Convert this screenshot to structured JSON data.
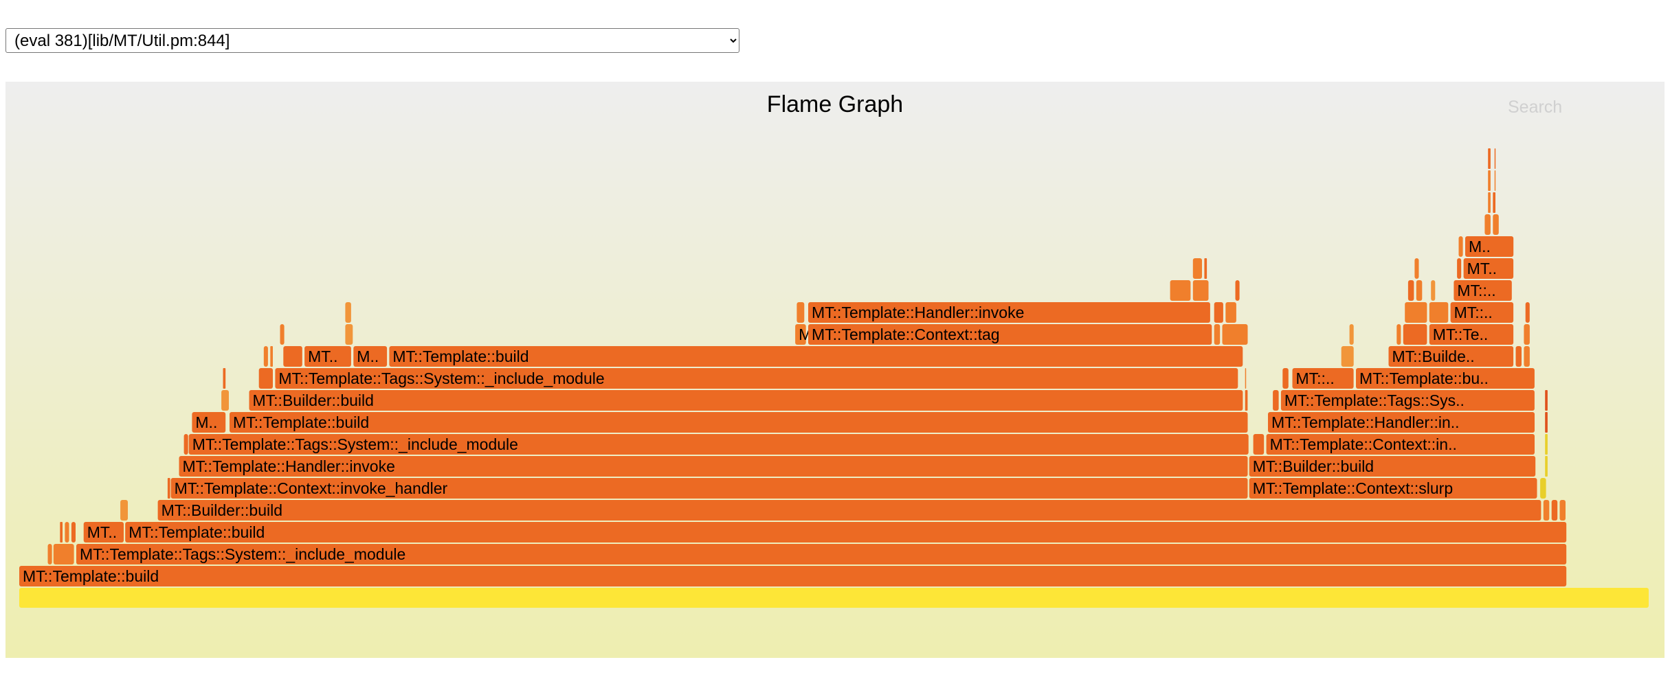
{
  "profile_select": {
    "selected": "(eval 381)[lib/MT/Util.pm:844]",
    "options": [
      "(eval 381)[lib/MT/Util.pm:844]"
    ]
  },
  "graph": {
    "title": "Flame Graph",
    "search_label": "Search",
    "total": 1000,
    "colors": {
      "frame": "#ec6a23",
      "frame_alt": "#f07f2c",
      "frame_light": "#f1953a",
      "root": "#fde637",
      "yellow": "#e8cf2a",
      "red": "#e0521c"
    }
  },
  "frames": [
    {
      "name": "",
      "depth": 0,
      "start": 0,
      "width": 1000,
      "color": "root"
    },
    {
      "name": "MT::Template::build",
      "label": "MT::Template::build",
      "depth": 1,
      "start": 0,
      "width": 949.5,
      "color": "frame"
    },
    {
      "name": "",
      "depth": 2,
      "start": 17.5,
      "width": 3,
      "color": "frame_alt"
    },
    {
      "name": "",
      "depth": 2,
      "start": 21,
      "width": 13,
      "color": "frame_alt"
    },
    {
      "name": "MT::Template::Tags::System::_include_module",
      "label": "MT::Template::Tags::System::_include_module",
      "depth": 2,
      "start": 35,
      "width": 914.5,
      "color": "frame"
    },
    {
      "name": "",
      "depth": 3,
      "start": 25,
      "width": 2,
      "color": "frame"
    },
    {
      "name": "",
      "depth": 3,
      "start": 28,
      "width": 3,
      "color": "frame_alt"
    },
    {
      "name": "",
      "depth": 3,
      "start": 32,
      "width": 3,
      "color": "frame"
    },
    {
      "name": "MT::Template::Tags::System::_include_module",
      "label": "MT..",
      "depth": 3,
      "start": 39.5,
      "width": 25,
      "color": "frame"
    },
    {
      "name": "MT::Template::build",
      "label": "MT::Template::build",
      "depth": 3,
      "start": 65,
      "width": 884.5,
      "color": "frame"
    },
    {
      "name": "",
      "depth": 4,
      "start": 62,
      "width": 5,
      "color": "frame_light"
    },
    {
      "name": "MT::Builder::build",
      "label": "MT::Builder::build",
      "depth": 4,
      "start": 85,
      "width": 849,
      "color": "frame"
    },
    {
      "name": "",
      "depth": 4,
      "start": 935,
      "width": 4,
      "color": "frame_alt"
    },
    {
      "name": "",
      "depth": 4,
      "start": 940,
      "width": 4,
      "color": "frame"
    },
    {
      "name": "",
      "depth": 4,
      "start": 945,
      "width": 4,
      "color": "frame_alt"
    },
    {
      "name": "",
      "depth": 5,
      "start": 91,
      "width": 2,
      "color": "frame"
    },
    {
      "name": "MT::Template::Context::invoke_handler",
      "label": "MT::Template::Context::invoke_handler",
      "depth": 5,
      "start": 93,
      "width": 661,
      "color": "frame"
    },
    {
      "name": "MT::Template::Context::slurp",
      "label": "MT::Template::Context::slurp",
      "depth": 5,
      "start": 754.5,
      "width": 177,
      "color": "frame"
    },
    {
      "name": "",
      "depth": 5,
      "start": 933,
      "width": 4,
      "color": "yellow"
    },
    {
      "name": "MT::Template::Handler::invoke",
      "label": "MT::Template::Handler::invoke",
      "depth": 6,
      "start": 98,
      "width": 656,
      "color": "frame"
    },
    {
      "name": "MT::Builder::build",
      "label": "MT::Builder::build",
      "depth": 6,
      "start": 754.5,
      "width": 176,
      "color": "frame"
    },
    {
      "name": "",
      "depth": 6,
      "start": 936,
      "width": 2,
      "color": "yellow"
    },
    {
      "name": "",
      "depth": 7,
      "start": 101,
      "width": 3,
      "color": "frame"
    },
    {
      "name": "MT::Template::Tags::System::_include_module",
      "label": "MT::Template::Tags::System::_include_module",
      "depth": 7,
      "start": 104,
      "width": 650.5,
      "color": "frame"
    },
    {
      "name": "",
      "depth": 7,
      "start": 757,
      "width": 7,
      "color": "frame"
    },
    {
      "name": "MT::Template::Context::invoke_handler",
      "label": "MT::Template::Context::in..",
      "depth": 7,
      "start": 765,
      "width": 165,
      "color": "frame"
    },
    {
      "name": "",
      "depth": 7,
      "start": 936,
      "width": 2,
      "color": "yellow"
    },
    {
      "name": "MT::Template::build",
      "label": "M..",
      "depth": 8,
      "start": 106,
      "width": 21,
      "color": "frame"
    },
    {
      "name": "MT::Template::build",
      "label": "MT::Template::build",
      "depth": 8,
      "start": 129,
      "width": 625,
      "color": "frame"
    },
    {
      "name": "MT::Template::Handler::invoke",
      "label": "MT::Template::Handler::in..",
      "depth": 8,
      "start": 766,
      "width": 164,
      "color": "frame"
    },
    {
      "name": "",
      "depth": 8,
      "start": 936,
      "width": 2,
      "color": "red"
    },
    {
      "name": "",
      "depth": 9,
      "start": 124,
      "width": 5,
      "color": "frame_light"
    },
    {
      "name": "MT::Builder::build",
      "label": "MT::Builder::build",
      "depth": 9,
      "start": 141,
      "width": 610,
      "color": "frame"
    },
    {
      "name": "",
      "depth": 9,
      "start": 752,
      "width": 2,
      "color": "frame"
    },
    {
      "name": "",
      "depth": 9,
      "start": 769,
      "width": 4,
      "color": "frame"
    },
    {
      "name": "MT::Template::Tags::System::_include_module",
      "label": "MT::Template::Tags::Sys..",
      "depth": 9,
      "start": 774,
      "width": 156,
      "color": "frame"
    },
    {
      "name": "",
      "depth": 9,
      "start": 936,
      "width": 2,
      "color": "red"
    },
    {
      "name": "",
      "depth": 10,
      "start": 125,
      "width": 2,
      "color": "frame"
    },
    {
      "name": "",
      "depth": 10,
      "start": 147,
      "width": 9,
      "color": "frame"
    },
    {
      "name": "MT::Template::Tags::System::_include_module",
      "label": "MT::Template::Tags::System::_include_module",
      "depth": 10,
      "start": 157,
      "width": 591,
      "color": "frame"
    },
    {
      "name": "",
      "depth": 10,
      "start": 752,
      "width": 1,
      "color": "frame_alt"
    },
    {
      "name": "",
      "depth": 10,
      "start": 775,
      "width": 4,
      "color": "frame"
    },
    {
      "name": "MT::Template::Context::invoke_handler",
      "label": "MT::..",
      "depth": 10,
      "start": 781,
      "width": 38,
      "color": "frame"
    },
    {
      "name": "MT::Template::build",
      "label": "MT::Template::bu..",
      "depth": 10,
      "start": 820,
      "width": 110,
      "color": "frame"
    },
    {
      "name": "",
      "depth": 11,
      "start": 150,
      "width": 3,
      "color": "frame_alt"
    },
    {
      "name": "",
      "depth": 11,
      "start": 154,
      "width": 2,
      "color": "frame_alt"
    },
    {
      "name": "",
      "depth": 11,
      "start": 162,
      "width": 12,
      "color": "frame"
    },
    {
      "name": "MT::Template::Tags::System::_include_module",
      "label": "MT..",
      "depth": 11,
      "start": 175,
      "width": 29,
      "color": "frame"
    },
    {
      "name": "MT::Template::build",
      "label": "M..",
      "depth": 11,
      "start": 205,
      "width": 21,
      "color": "frame"
    },
    {
      "name": "MT::Template::build",
      "label": "MT::Template::build",
      "depth": 11,
      "start": 227,
      "width": 524,
      "color": "frame"
    },
    {
      "name": "",
      "depth": 11,
      "start": 811,
      "width": 8,
      "color": "frame_light"
    },
    {
      "name": "MT::Builder::build",
      "label": "MT::Builde..",
      "depth": 11,
      "start": 840,
      "width": 77,
      "color": "frame"
    },
    {
      "name": "",
      "depth": 11,
      "start": 918,
      "width": 4,
      "color": "frame"
    },
    {
      "name": "",
      "depth": 11,
      "start": 923,
      "width": 4,
      "color": "frame_alt"
    },
    {
      "name": "",
      "depth": 12,
      "start": 160,
      "width": 3,
      "color": "frame_alt"
    },
    {
      "name": "",
      "depth": 12,
      "start": 200,
      "width": 5,
      "color": "frame_light"
    },
    {
      "name": "MT::Template::Context::tag",
      "label": "MT::Template::Context::tag",
      "depth": 12,
      "start": 476,
      "width": 7,
      "color": "frame_alt"
    },
    {
      "name": "MT::Template::Context::tag",
      "label": "MT::Template::Context::tag",
      "depth": 12,
      "start": 484,
      "width": 248,
      "color": "frame"
    },
    {
      "name": "",
      "depth": 12,
      "start": 733,
      "width": 4,
      "color": "frame_alt"
    },
    {
      "name": "",
      "depth": 12,
      "start": 738,
      "width": 16,
      "color": "frame_alt"
    },
    {
      "name": "",
      "depth": 12,
      "start": 816,
      "width": 3,
      "color": "frame_light"
    },
    {
      "name": "",
      "depth": 12,
      "start": 845,
      "width": 3,
      "color": "frame_alt"
    },
    {
      "name": "",
      "depth": 12,
      "start": 849,
      "width": 15,
      "color": "frame"
    },
    {
      "name": "MT::Template::Context::tag",
      "label": "MT::Te..",
      "depth": 12,
      "start": 865,
      "width": 52,
      "color": "frame"
    },
    {
      "name": "",
      "depth": 12,
      "start": 923,
      "width": 4,
      "color": "frame_alt"
    },
    {
      "name": "",
      "depth": 13,
      "start": 200,
      "width": 4,
      "color": "frame_light"
    },
    {
      "name": "",
      "depth": 13,
      "start": 477,
      "width": 5,
      "color": "frame_alt"
    },
    {
      "name": "MT::Template::Handler::invoke",
      "label": "MT::Template::Handler::invoke",
      "depth": 13,
      "start": 484,
      "width": 247,
      "color": "frame"
    },
    {
      "name": "",
      "depth": 13,
      "start": 733,
      "width": 6,
      "color": "frame"
    },
    {
      "name": "",
      "depth": 13,
      "start": 740,
      "width": 7,
      "color": "frame_alt"
    },
    {
      "name": "",
      "depth": 13,
      "start": 850,
      "width": 14,
      "color": "frame_alt"
    },
    {
      "name": "",
      "depth": 13,
      "start": 865,
      "width": 12,
      "color": "frame_alt"
    },
    {
      "name": "MT::Template::Handler::invoke",
      "label": "MT::..",
      "depth": 13,
      "start": 878,
      "width": 39,
      "color": "frame"
    },
    {
      "name": "",
      "depth": 13,
      "start": 924,
      "width": 3,
      "color": "frame"
    },
    {
      "name": "",
      "depth": 14,
      "start": 706,
      "width": 13,
      "color": "frame_alt"
    },
    {
      "name": "",
      "depth": 14,
      "start": 720,
      "width": 10,
      "color": "frame_alt"
    },
    {
      "name": "",
      "depth": 14,
      "start": 746,
      "width": 3,
      "color": "frame"
    },
    {
      "name": "",
      "depth": 14,
      "start": 852,
      "width": 4,
      "color": "frame"
    },
    {
      "name": "",
      "depth": 14,
      "start": 857,
      "width": 4,
      "color": "frame_alt"
    },
    {
      "name": "",
      "depth": 14,
      "start": 866,
      "width": 3,
      "color": "frame_light"
    },
    {
      "name": "MT::Template::Tags::System::_include_module",
      "label": "MT::..",
      "depth": 14,
      "start": 880,
      "width": 36,
      "color": "frame"
    },
    {
      "name": "",
      "depth": 15,
      "start": 720,
      "width": 6,
      "color": "frame_alt"
    },
    {
      "name": "",
      "depth": 15,
      "start": 727,
      "width": 2,
      "color": "frame"
    },
    {
      "name": "",
      "depth": 15,
      "start": 856,
      "width": 3,
      "color": "frame_alt"
    },
    {
      "name": "",
      "depth": 15,
      "start": 882,
      "width": 3,
      "color": "frame"
    },
    {
      "name": "MT::Template::build",
      "label": "MT..",
      "depth": 15,
      "start": 886,
      "width": 31,
      "color": "frame"
    },
    {
      "name": "",
      "depth": 16,
      "start": 883,
      "width": 3,
      "color": "frame_alt"
    },
    {
      "name": "MT::Builder::build",
      "label": "M..",
      "depth": 16,
      "start": 887,
      "width": 30,
      "color": "frame"
    },
    {
      "name": "",
      "depth": 17,
      "start": 899,
      "width": 4,
      "color": "frame_alt"
    },
    {
      "name": "",
      "depth": 17,
      "start": 904,
      "width": 4,
      "color": "frame_alt"
    },
    {
      "name": "",
      "depth": 18,
      "start": 901,
      "width": 2,
      "color": "frame_alt"
    },
    {
      "name": "",
      "depth": 18,
      "start": 904,
      "width": 2,
      "color": "frame"
    },
    {
      "name": "",
      "depth": 19,
      "start": 901,
      "width": 2,
      "color": "frame_alt"
    },
    {
      "name": "",
      "depth": 19,
      "start": 905,
      "width": 1,
      "color": "frame_alt"
    },
    {
      "name": "",
      "depth": 20,
      "start": 901,
      "width": 2,
      "color": "frame"
    },
    {
      "name": "",
      "depth": 20,
      "start": 905,
      "width": 1,
      "color": "frame"
    }
  ]
}
